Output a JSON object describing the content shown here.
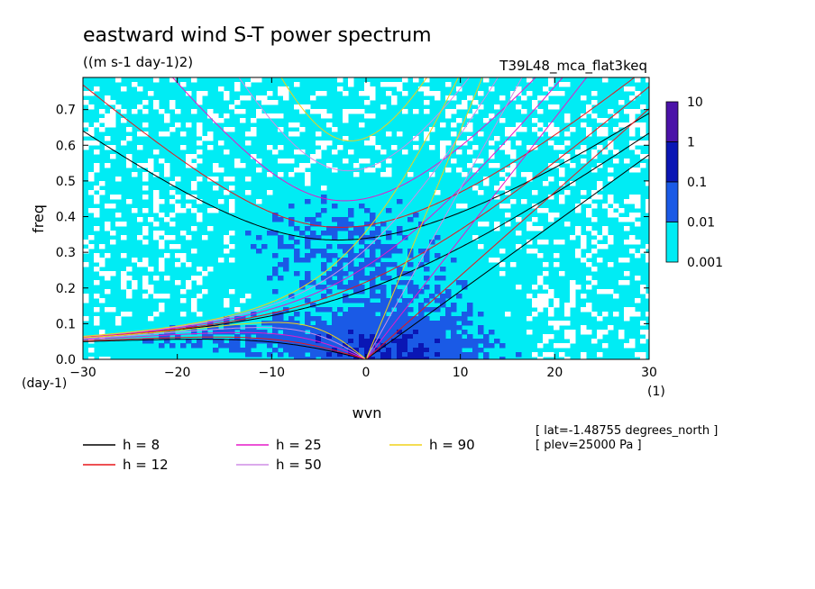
{
  "chart_data": {
    "type": "heatmap",
    "title": "eastward wind S-T power spectrum",
    "subtitle": "((m s-1 day-1)2)",
    "experiment": "T39L48_mca_flat3keq",
    "xlabel": "wvn",
    "ylabel": "freq",
    "xunits": "(1)",
    "yunits": "(day-1)",
    "xlim": [
      -30,
      30
    ],
    "ylim": [
      0,
      0.79
    ],
    "xticks": [
      "−30",
      "−20",
      "−10",
      "0",
      "10",
      "20",
      "30"
    ],
    "xtick_values": [
      -30,
      -20,
      -10,
      0,
      10,
      20,
      30
    ],
    "yticks": [
      "0.0",
      "0.1",
      "0.2",
      "0.3",
      "0.4",
      "0.5",
      "0.6",
      "0.7"
    ],
    "ytick_values": [
      0,
      0.1,
      0.2,
      0.3,
      0.4,
      0.5,
      0.6,
      0.7
    ],
    "colorbar": {
      "labels": [
        "10",
        "1",
        "0.1",
        "0.01",
        "0.001"
      ],
      "colors": [
        "#4b12a8",
        "#0a16b4",
        "#1a5ae6",
        "#00ecf4"
      ]
    },
    "dispersion_curves": [
      {
        "label": "h =  8",
        "h": 8,
        "color": "#000000"
      },
      {
        "label": "h = 12",
        "h": 12,
        "color": "#e8161a"
      },
      {
        "label": "h = 25",
        "h": 25,
        "color": "#e61ac8"
      },
      {
        "label": "h = 50",
        "h": 50,
        "color": "#cf8de6"
      },
      {
        "label": "h = 90",
        "h": 90,
        "color": "#f0d21a"
      }
    ],
    "info": [
      "[ lat=-1.48755 degrees_north ]",
      "[ plev=25000 Pa ]"
    ]
  }
}
